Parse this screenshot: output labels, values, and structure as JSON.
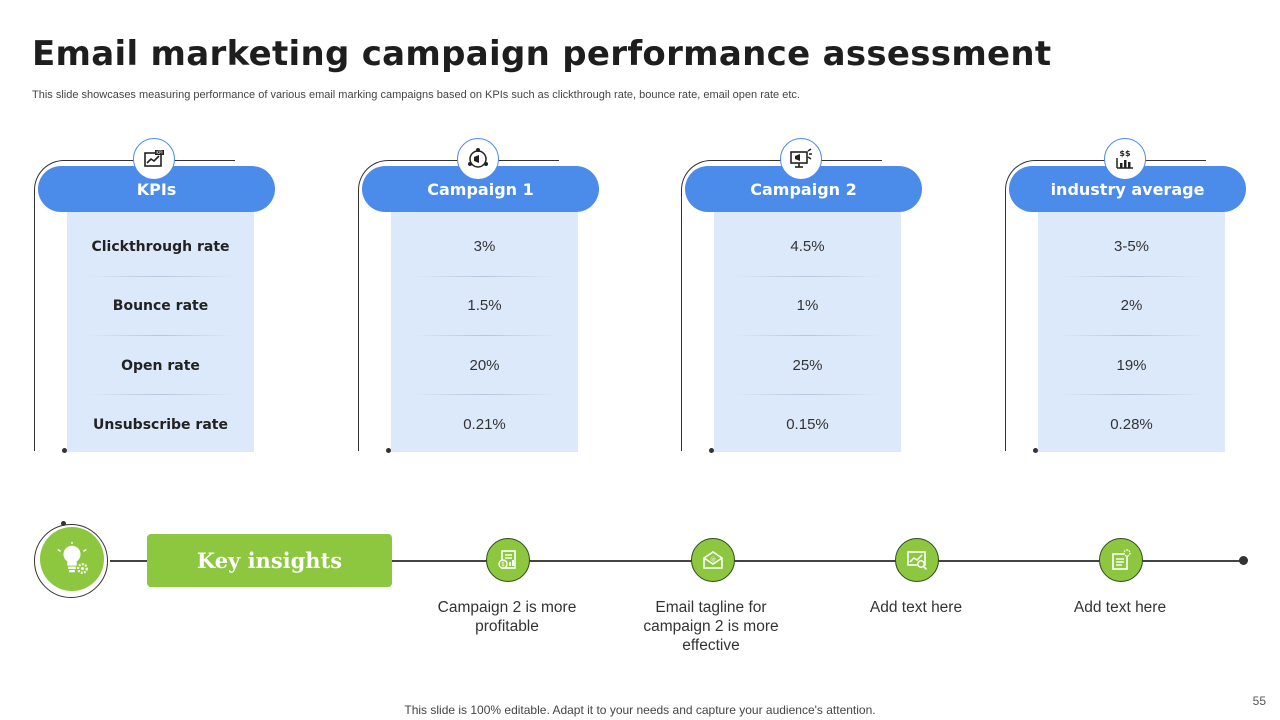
{
  "slide": {
    "title": "Email marketing campaign performance assessment",
    "subtitle": "This slide showcases measuring performance of various email marking campaigns based on KPIs such as clickthrough rate, bounce rate, email open rate etc.",
    "footer": "This slide is 100% editable. Adapt it to your needs and capture your audience's attention.",
    "page_number": "55"
  },
  "colors": {
    "blue": "#4b8bea",
    "light_blue": "#dce9fb",
    "green": "#8dc63f"
  },
  "columns": [
    {
      "header": "KPIs",
      "icon": "kpi-chart-icon",
      "cells": [
        "Clickthrough rate",
        "Bounce rate",
        "Open rate",
        "Unsubscribe rate"
      ]
    },
    {
      "header": "Campaign 1",
      "icon": "megaphone-network-icon",
      "cells": [
        "3%",
        "1.5%",
        "20%",
        "0.21%"
      ]
    },
    {
      "header": "Campaign 2",
      "icon": "monitor-megaphone-icon",
      "cells": [
        "4.5%",
        "1%",
        "25%",
        "0.15%"
      ]
    },
    {
      "header": "industry average",
      "icon": "dollar-chart-icon",
      "cells": [
        "3-5%",
        "2%",
        "19%",
        "0.28%"
      ]
    }
  ],
  "insights": {
    "title": "Key insights",
    "icon": "lightbulb-gear-icon",
    "items": [
      {
        "text": "Campaign 2 is more profitable",
        "icon": "dollar-document-icon"
      },
      {
        "text": "Email tagline for campaign 2 is more effective",
        "icon": "email-envelope-icon"
      },
      {
        "text": "Add text here",
        "icon": "chart-magnifier-icon"
      },
      {
        "text": "Add text here",
        "icon": "document-gear-icon"
      }
    ]
  }
}
